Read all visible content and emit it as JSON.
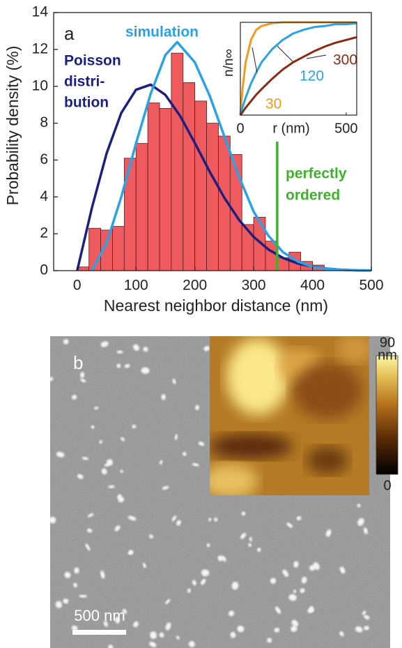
{
  "chart_data": [
    {
      "type": "histogram",
      "panel_label": "a",
      "xlabel": "Nearest neighbor distance (nm)",
      "ylabel": "Probability density (%)",
      "xlim": [
        -40,
        500
      ],
      "xticks": [
        0,
        100,
        200,
        300,
        400,
        500
      ],
      "ylim": [
        0,
        14
      ],
      "yticks": [
        0,
        2,
        4,
        6,
        8,
        10,
        12,
        14
      ],
      "color": "#ef5a5f",
      "bins": [
        0,
        20,
        40,
        60,
        80,
        100,
        120,
        140,
        160,
        180,
        200,
        220,
        240,
        260,
        280,
        300,
        320,
        340,
        360,
        380,
        400,
        420,
        440
      ],
      "values": [
        0.2,
        2.3,
        2.2,
        2.4,
        6.1,
        6.9,
        9.1,
        8.8,
        11.8,
        10.2,
        9.2,
        8.0,
        7.3,
        6.3,
        2.5,
        2.9,
        1.6,
        0.7,
        1.0,
        0.5,
        0.3,
        0.1
      ],
      "series": [
        {
          "name_lines": [
            "Poisson",
            "distri-",
            "bution"
          ],
          "color": "#1b1f7e",
          "x": [
            0,
            25,
            50,
            75,
            100,
            125,
            150,
            175,
            200,
            225,
            250,
            275,
            300,
            325,
            350,
            375,
            400,
            425,
            450,
            475,
            500
          ],
          "values": [
            0,
            3.4,
            6.36,
            8.56,
            9.81,
            10.09,
            9.53,
            8.39,
            6.92,
            5.38,
            3.96,
            2.76,
            1.83,
            1.15,
            0.69,
            0.39,
            0.21,
            0.11,
            0.05,
            0.02,
            0.01
          ]
        },
        {
          "name": "simulation",
          "color": "#29a3e6",
          "x": [
            25,
            50,
            75,
            100,
            125,
            150,
            170,
            200,
            225,
            250,
            275,
            300,
            325,
            350,
            375,
            400,
            425,
            450,
            475,
            500
          ],
          "values": [
            0,
            1.5,
            4.0,
            6.9,
            9.6,
            11.7,
            12.4,
            11.3,
            9.5,
            7.3,
            5.1,
            3.2,
            1.9,
            1.0,
            0.5,
            0.2,
            0.1,
            0.05,
            0.02,
            0.01
          ]
        }
      ],
      "annotation": {
        "lines": [
          "perfectly",
          "ordered"
        ],
        "x": 340,
        "y_top": 7,
        "color": "#3db32a"
      }
    },
    {
      "type": "line",
      "xlabel": "r (nm)",
      "ylabel": "n/n∞",
      "xlim": [
        0,
        550
      ],
      "xticks": [
        0,
        500
      ],
      "ylim": [
        0,
        1
      ],
      "x": [
        0,
        10,
        25,
        50,
        75,
        100,
        150,
        200,
        250,
        300,
        350,
        400,
        450,
        500,
        550
      ],
      "series": [
        {
          "name": "30",
          "color": "#f39a1c",
          "values": [
            0,
            0.28,
            0.57,
            0.81,
            0.92,
            0.96,
            0.99,
            1.0,
            1.0,
            1.0,
            1.0,
            1.0,
            1.0,
            1.0,
            1.0
          ]
        },
        {
          "name": "120",
          "color": "#29a3e6",
          "values": [
            0,
            0.08,
            0.19,
            0.34,
            0.46,
            0.57,
            0.71,
            0.81,
            0.88,
            0.92,
            0.95,
            0.96,
            0.98,
            0.98,
            0.99
          ]
        },
        {
          "name": "300",
          "color": "#8b2a12",
          "values": [
            0,
            0.03,
            0.08,
            0.15,
            0.22,
            0.28,
            0.39,
            0.49,
            0.57,
            0.63,
            0.69,
            0.74,
            0.78,
            0.81,
            0.84
          ]
        }
      ]
    }
  ],
  "image_panel": {
    "label": "b",
    "scale_bar": "500 nm",
    "colorbar": {
      "unit": "nm",
      "lim": [
        0,
        90
      ],
      "ticks": [
        0,
        90
      ]
    }
  }
}
